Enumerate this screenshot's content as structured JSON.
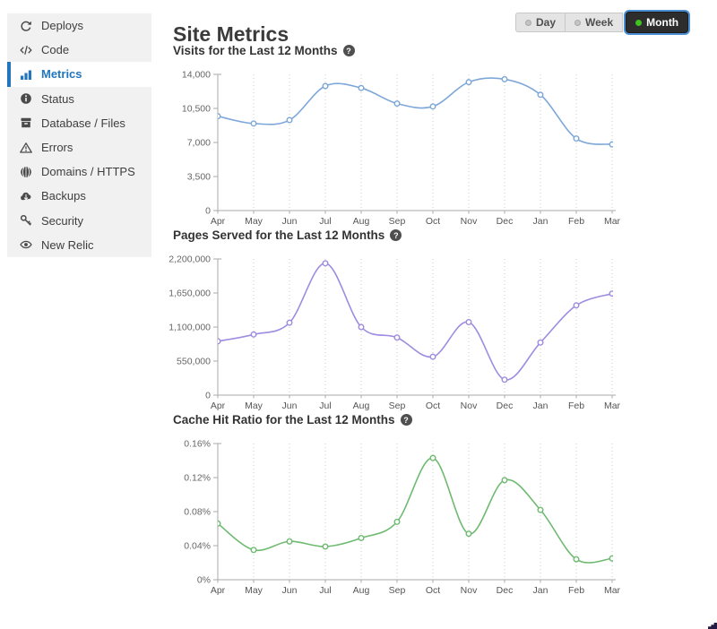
{
  "sidebar": {
    "items": [
      {
        "label": "Deploys",
        "icon": "refresh-icon",
        "active": false
      },
      {
        "label": "Code",
        "icon": "code-icon",
        "active": false
      },
      {
        "label": "Metrics",
        "icon": "bar-chart-icon",
        "active": true
      },
      {
        "label": "Status",
        "icon": "info-icon",
        "active": false
      },
      {
        "label": "Database / Files",
        "icon": "database-icon",
        "active": false
      },
      {
        "label": "Errors",
        "icon": "warning-icon",
        "active": false
      },
      {
        "label": "Domains / HTTPS",
        "icon": "globe-icon",
        "active": false
      },
      {
        "label": "Backups",
        "icon": "cloud-icon",
        "active": false
      },
      {
        "label": "Security",
        "icon": "key-icon",
        "active": false
      },
      {
        "label": "New Relic",
        "icon": "eye-icon",
        "active": false
      }
    ]
  },
  "header": {
    "title": "Site Metrics",
    "help_glyph": "?",
    "range_toggle": {
      "options": [
        {
          "label": "Day",
          "selected": false
        },
        {
          "label": "Week",
          "selected": false
        },
        {
          "label": "Month",
          "selected": true
        }
      ]
    }
  },
  "colors": {
    "sidebar_bg": "#f1f1f1",
    "active_blue": "#2276bd",
    "axis": "#aaaaaa",
    "grid": "#cccccc",
    "visits_line": "#7da7d8",
    "pages_line": "#9e8ce0",
    "cache_line": "#6eba70",
    "selected_button_bg": "#2d2d2d",
    "selected_dot_green": "#3fc220",
    "focus_ring": "#4b8fd4"
  },
  "chart_data": [
    {
      "type": "line",
      "title": "Visits for the Last 12 Months",
      "categories": [
        "Apr",
        "May",
        "Jun",
        "Jul",
        "Aug",
        "Sep",
        "Oct",
        "Nov",
        "Dec",
        "Jan",
        "Feb",
        "Mar"
      ],
      "values": [
        9700,
        8950,
        9300,
        12800,
        12600,
        11000,
        10700,
        13200,
        13500,
        11900,
        7400,
        6800
      ],
      "ylim": [
        0,
        14000
      ],
      "y_tick_labels": [
        "0",
        "3,500",
        "7,000",
        "10,500",
        "14,000"
      ],
      "xlabel": "",
      "ylabel": "",
      "color": "#7da7d8",
      "grid": "vertical-dotted",
      "legend": "none",
      "marker": "open-circle"
    },
    {
      "type": "line",
      "title": "Pages Served for the Last 12 Months",
      "categories": [
        "Apr",
        "May",
        "Jun",
        "Jul",
        "Aug",
        "Sep",
        "Oct",
        "Nov",
        "Dec",
        "Jan",
        "Feb",
        "Mar"
      ],
      "values": [
        870000,
        980000,
        1170000,
        2130000,
        1100000,
        930000,
        620000,
        1180000,
        250000,
        850000,
        1450000,
        1640000
      ],
      "ylim": [
        0,
        2200000
      ],
      "y_tick_labels": [
        "0",
        "550,000",
        "1,100,000",
        "1,650,000",
        "2,200,000"
      ],
      "xlabel": "",
      "ylabel": "",
      "color": "#9e8ce0",
      "grid": "vertical-dotted",
      "legend": "none",
      "marker": "open-circle"
    },
    {
      "type": "line",
      "title": "Cache Hit Ratio for the Last 12 Months",
      "categories": [
        "Apr",
        "May",
        "Jun",
        "Jul",
        "Aug",
        "Sep",
        "Oct",
        "Nov",
        "Dec",
        "Jan",
        "Feb",
        "Mar"
      ],
      "values": [
        0.066,
        0.035,
        0.045,
        0.039,
        0.049,
        0.068,
        0.143,
        0.054,
        0.117,
        0.082,
        0.024,
        0.025
      ],
      "ylim": [
        0,
        0.16
      ],
      "y_tick_labels": [
        "0%",
        "0.04%",
        "0.08%",
        "0.12%",
        "0.16%"
      ],
      "xlabel": "",
      "ylabel": "",
      "color": "#6eba70",
      "grid": "vertical-dotted",
      "legend": "none",
      "marker": "open-circle"
    }
  ]
}
